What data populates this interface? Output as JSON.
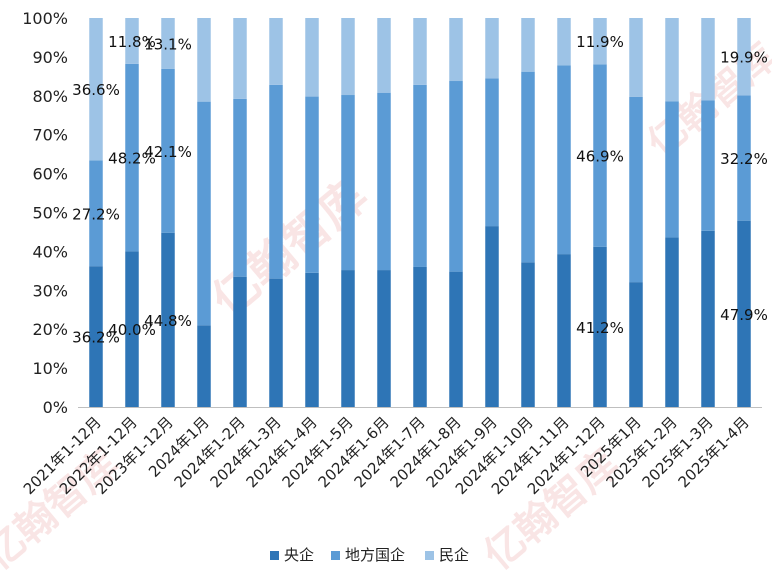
{
  "chart_data": {
    "type": "bar",
    "stacked": true,
    "percent": true,
    "categories": [
      "2021年1-12月",
      "2022年1-12月",
      "2023年1-12月",
      "2024年1月",
      "2024年1-2月",
      "2024年1-3月",
      "2024年1-4月",
      "2024年1-5月",
      "2024年1-6月",
      "2024年1-7月",
      "2024年1-8月",
      "2024年1-9月",
      "2024年1-10月",
      "2024年1-11月",
      "2024年1-12月",
      "2025年1月",
      "2025年1-2月",
      "2025年1-3月",
      "2025年1-4月"
    ],
    "series": [
      {
        "name": "央企",
        "color": "#2e75b6",
        "values": [
          36.2,
          40.0,
          44.8,
          21.0,
          33.5,
          33.0,
          34.5,
          35.2,
          35.2,
          36.0,
          34.8,
          46.5,
          37.2,
          39.3,
          41.2,
          32.1,
          43.6,
          45.3,
          47.9
        ]
      },
      {
        "name": "地方国企",
        "color": "#5b9bd5",
        "values": [
          27.2,
          48.2,
          42.1,
          57.5,
          45.7,
          49.8,
          45.3,
          45.0,
          45.6,
          46.8,
          49.0,
          38.0,
          49.0,
          48.5,
          46.9,
          47.6,
          35.0,
          33.5,
          32.2
        ]
      },
      {
        "name": "民企",
        "color": "#9dc3e6",
        "values": [
          36.6,
          11.8,
          13.1,
          21.5,
          20.8,
          17.2,
          20.2,
          19.8,
          19.2,
          17.2,
          16.2,
          15.5,
          13.8,
          12.2,
          11.9,
          20.3,
          21.4,
          21.2,
          19.9
        ]
      }
    ],
    "data_labels": [
      {
        "series": 0,
        "index": 0,
        "text": "36.2%"
      },
      {
        "series": 1,
        "index": 0,
        "text": "27.2%"
      },
      {
        "series": 2,
        "index": 0,
        "text": "36.6%"
      },
      {
        "series": 0,
        "index": 1,
        "text": "40.0%"
      },
      {
        "series": 1,
        "index": 1,
        "text": "48.2%"
      },
      {
        "series": 2,
        "index": 1,
        "text": "11.8%"
      },
      {
        "series": 0,
        "index": 2,
        "text": "44.8%"
      },
      {
        "series": 1,
        "index": 2,
        "text": "42.1%"
      },
      {
        "series": 2,
        "index": 2,
        "text": "13.1%"
      },
      {
        "series": 0,
        "index": 14,
        "text": "41.2%"
      },
      {
        "series": 1,
        "index": 14,
        "text": "46.9%"
      },
      {
        "series": 2,
        "index": 14,
        "text": "11.9%"
      },
      {
        "series": 0,
        "index": 18,
        "text": "47.9%"
      },
      {
        "series": 1,
        "index": 18,
        "text": "32.2%"
      },
      {
        "series": 2,
        "index": 18,
        "text": "19.9%"
      }
    ],
    "y_ticks": [
      "0%",
      "10%",
      "20%",
      "30%",
      "40%",
      "50%",
      "60%",
      "70%",
      "80%",
      "90%",
      "100%"
    ],
    "ylim": [
      0,
      100
    ],
    "legend_position": "bottom",
    "grid": false
  },
  "watermark": {
    "text": "亿翰智库",
    "color": "#e8a0a0"
  }
}
